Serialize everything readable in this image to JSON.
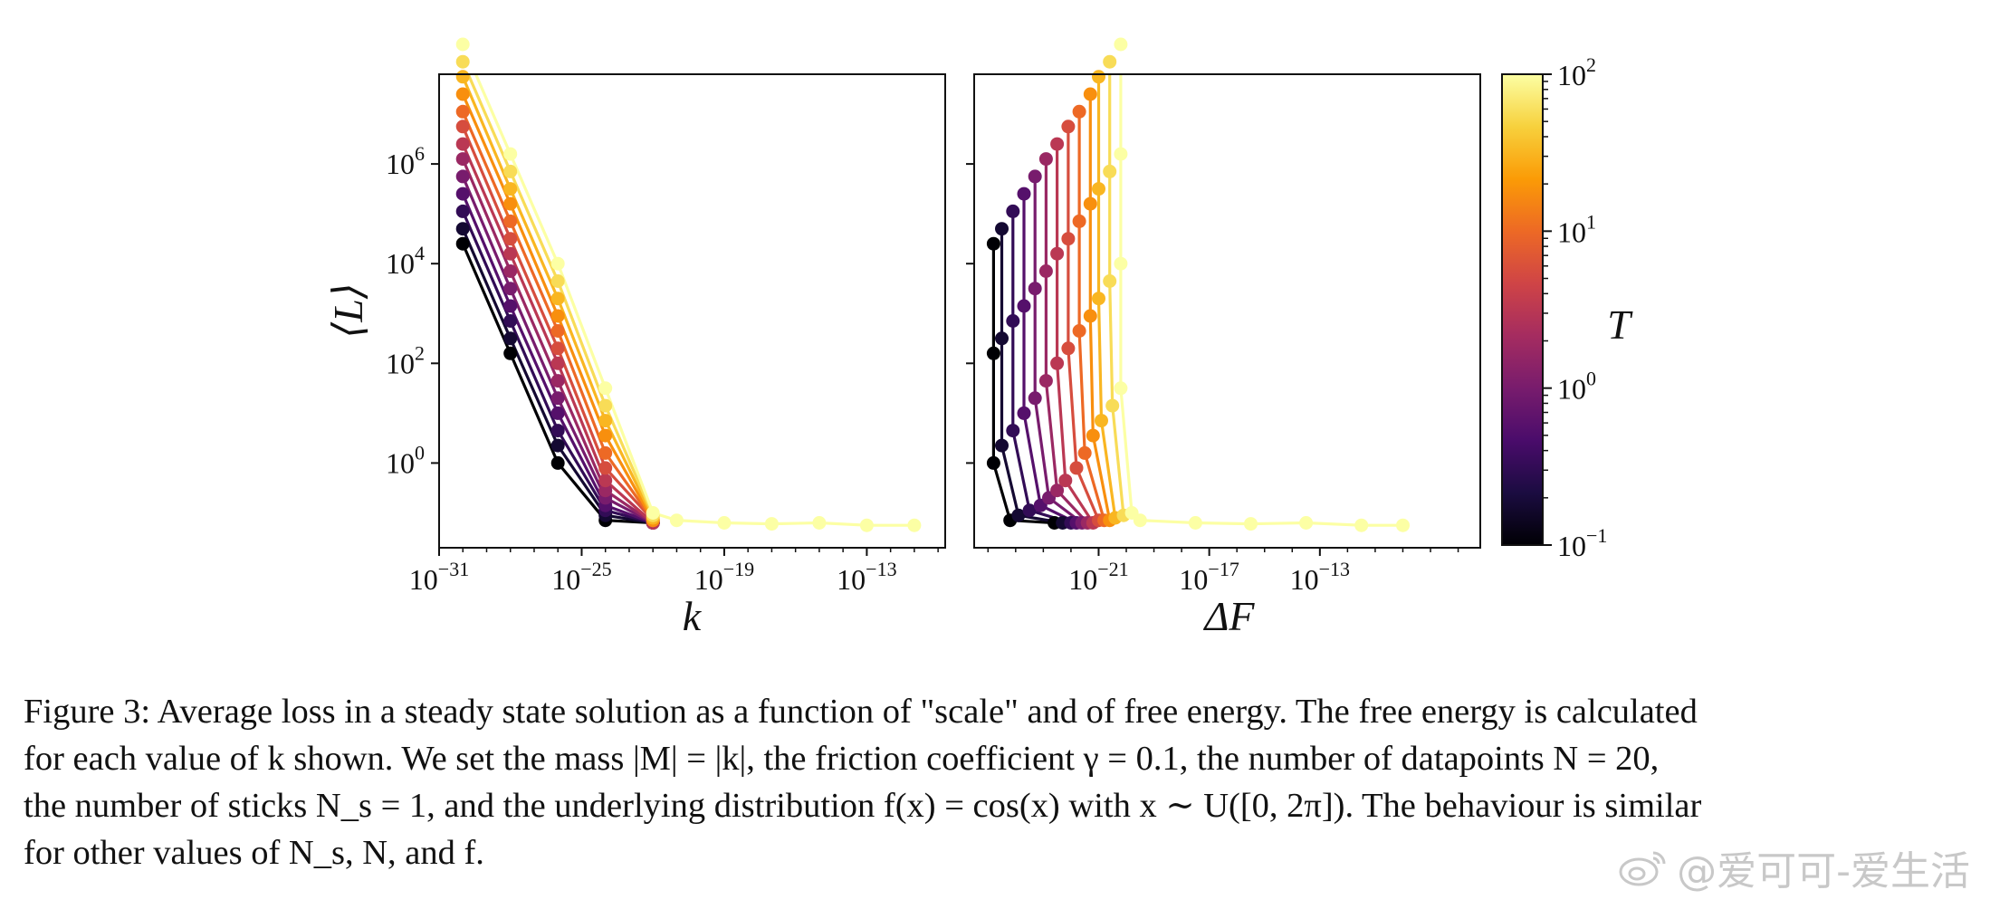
{
  "chart_data": [
    {
      "type": "line",
      "panel": "left",
      "xlabel": "k",
      "ylabel": "⟨L⟩",
      "xscale": "log",
      "yscale": "log",
      "xlim_exp": [
        -31,
        -9.7
      ],
      "ylim_exp": [
        -1.7,
        7.8
      ],
      "xticks": [
        {
          "base": "10",
          "exp": "−31",
          "value_exp": -31
        },
        {
          "base": "10",
          "exp": "−25",
          "value_exp": -25
        },
        {
          "base": "10",
          "exp": "−19",
          "value_exp": -19
        },
        {
          "base": "10",
          "exp": "−13",
          "value_exp": -13
        }
      ],
      "yticks": [
        {
          "base": "10",
          "exp": "0",
          "value_exp": 0
        },
        {
          "base": "10",
          "exp": "2",
          "value_exp": 2
        },
        {
          "base": "10",
          "exp": "4",
          "value_exp": 4
        },
        {
          "base": "10",
          "exp": "6",
          "value_exp": 6
        }
      ],
      "tail_log10_k": [
        -21,
        -19,
        -17,
        -15,
        -13,
        -11
      ],
      "tail_log10_L": [
        -1.15,
        -1.2,
        -1.22,
        -1.2,
        -1.25,
        -1.25
      ],
      "series": [
        {
          "T": 0.1,
          "x_log10": [
            -30,
            -28,
            -26,
            -24,
            -22
          ],
          "y_log10": [
            4.4,
            2.2,
            0.0,
            -1.15,
            -1.2
          ]
        },
        {
          "T": 0.178,
          "x_log10": [
            -30,
            -28,
            -26,
            -24,
            -22
          ],
          "y_log10": [
            4.7,
            2.5,
            0.35,
            -1.05,
            -1.2
          ]
        },
        {
          "T": 0.316,
          "x_log10": [
            -30,
            -28,
            -26,
            -24,
            -22
          ],
          "y_log10": [
            5.05,
            2.85,
            0.65,
            -0.95,
            -1.2
          ]
        },
        {
          "T": 0.562,
          "x_log10": [
            -30,
            -28,
            -26,
            -24,
            -22
          ],
          "y_log10": [
            5.4,
            3.15,
            1.0,
            -0.85,
            -1.2
          ]
        },
        {
          "T": 1.0,
          "x_log10": [
            -30,
            -28,
            -26,
            -24,
            -22
          ],
          "y_log10": [
            5.75,
            3.5,
            1.3,
            -0.7,
            -1.2
          ]
        },
        {
          "T": 1.78,
          "x_log10": [
            -30,
            -28,
            -26,
            -24,
            -22
          ],
          "y_log10": [
            6.1,
            3.85,
            1.65,
            -0.55,
            -1.2
          ]
        },
        {
          "T": 3.16,
          "x_log10": [
            -30,
            -28,
            -26,
            -24,
            -22
          ],
          "y_log10": [
            6.4,
            4.2,
            2.0,
            -0.35,
            -1.2
          ]
        },
        {
          "T": 5.62,
          "x_log10": [
            -30,
            -28,
            -26,
            -24,
            -22
          ],
          "y_log10": [
            6.75,
            4.5,
            2.3,
            -0.1,
            -1.15
          ]
        },
        {
          "T": 10.0,
          "x_log10": [
            -30,
            -28,
            -26,
            -24,
            -22
          ],
          "y_log10": [
            7.05,
            4.85,
            2.65,
            0.2,
            -1.15
          ]
        },
        {
          "T": 17.8,
          "x_log10": [
            -30,
            -28,
            -26,
            -24,
            -22
          ],
          "y_log10": [
            7.4,
            5.2,
            2.95,
            0.55,
            -1.15
          ]
        },
        {
          "T": 31.6,
          "x_log10": [
            -30,
            -28,
            -26,
            -24,
            -22
          ],
          "y_log10": [
            7.75,
            5.5,
            3.3,
            0.85,
            -1.1
          ]
        },
        {
          "T": 56.2,
          "x_log10": [
            -30,
            -28,
            -26,
            -24,
            -22
          ],
          "y_log10": [
            8.05,
            5.85,
            3.65,
            1.15,
            -1.05
          ]
        },
        {
          "T": 100.0,
          "x_log10": [
            -30,
            -28,
            -26,
            -24,
            -22
          ],
          "y_log10": [
            8.4,
            6.2,
            4.0,
            1.5,
            -1.0
          ]
        }
      ]
    },
    {
      "type": "line",
      "panel": "right",
      "xlabel": "ΔF",
      "xscale": "log",
      "yscale": "log",
      "xlim_exp": [
        -25.5,
        -7.2
      ],
      "ylim_exp": [
        -1.7,
        7.8
      ],
      "xticks": [
        {
          "base": "10",
          "exp": "−21",
          "value_exp": -21
        },
        {
          "base": "10",
          "exp": "−17",
          "value_exp": -17
        },
        {
          "base": "10",
          "exp": "−13",
          "value_exp": -13
        }
      ],
      "tail_log10_dF": [
        -19.5,
        -17.5,
        -15.5,
        -13.5,
        -11.5,
        -10
      ],
      "tail_log10_L": [
        -1.15,
        -1.2,
        -1.22,
        -1.2,
        -1.25,
        -1.25
      ],
      "series": [
        {
          "T": 0.1,
          "x_log10": [
            -24.8,
            -24.8,
            -24.8,
            -24.2,
            -22.6
          ],
          "y_log10": [
            4.4,
            2.2,
            0.0,
            -1.15,
            -1.2
          ]
        },
        {
          "T": 0.178,
          "x_log10": [
            -24.5,
            -24.5,
            -24.5,
            -23.9,
            -22.3
          ],
          "y_log10": [
            4.7,
            2.5,
            0.35,
            -1.05,
            -1.2
          ]
        },
        {
          "T": 0.316,
          "x_log10": [
            -24.1,
            -24.1,
            -24.1,
            -23.5,
            -22.0
          ],
          "y_log10": [
            5.05,
            2.85,
            0.65,
            -0.95,
            -1.2
          ]
        },
        {
          "T": 0.562,
          "x_log10": [
            -23.7,
            -23.7,
            -23.7,
            -23.1,
            -21.8
          ],
          "y_log10": [
            5.4,
            3.15,
            1.0,
            -0.85,
            -1.2
          ]
        },
        {
          "T": 1.0,
          "x_log10": [
            -23.3,
            -23.3,
            -23.3,
            -22.8,
            -21.6
          ],
          "y_log10": [
            5.75,
            3.5,
            1.3,
            -0.7,
            -1.2
          ]
        },
        {
          "T": 1.78,
          "x_log10": [
            -22.9,
            -22.9,
            -22.9,
            -22.5,
            -21.4
          ],
          "y_log10": [
            6.1,
            3.85,
            1.65,
            -0.55,
            -1.2
          ]
        },
        {
          "T": 3.16,
          "x_log10": [
            -22.5,
            -22.5,
            -22.5,
            -22.2,
            -21.2
          ],
          "y_log10": [
            6.4,
            4.2,
            2.0,
            -0.35,
            -1.2
          ]
        },
        {
          "T": 5.62,
          "x_log10": [
            -22.1,
            -22.1,
            -22.1,
            -21.8,
            -21.0
          ],
          "y_log10": [
            6.75,
            4.5,
            2.3,
            -0.1,
            -1.15
          ]
        },
        {
          "T": 10.0,
          "x_log10": [
            -21.7,
            -21.7,
            -21.7,
            -21.5,
            -20.8
          ],
          "y_log10": [
            7.05,
            4.85,
            2.65,
            0.2,
            -1.15
          ]
        },
        {
          "T": 17.8,
          "x_log10": [
            -21.3,
            -21.3,
            -21.3,
            -21.2,
            -20.6
          ],
          "y_log10": [
            7.4,
            5.2,
            2.95,
            0.55,
            -1.15
          ]
        },
        {
          "T": 31.6,
          "x_log10": [
            -21.0,
            -21.0,
            -21.0,
            -20.9,
            -20.4
          ],
          "y_log10": [
            7.75,
            5.5,
            3.3,
            0.85,
            -1.1
          ]
        },
        {
          "T": 56.2,
          "x_log10": [
            -20.6,
            -20.6,
            -20.6,
            -20.5,
            -20.1
          ],
          "y_log10": [
            8.05,
            5.85,
            3.65,
            1.15,
            -1.05
          ]
        },
        {
          "T": 100.0,
          "x_log10": [
            -20.2,
            -20.2,
            -20.2,
            -20.2,
            -19.8
          ],
          "y_log10": [
            8.4,
            6.2,
            4.0,
            1.5,
            -1.0
          ]
        }
      ]
    }
  ],
  "colorbar": {
    "label": "T",
    "scale": "log",
    "range": [
      0.1,
      100
    ],
    "ticks": [
      {
        "base": "10",
        "exp": "2"
      },
      {
        "base": "10",
        "exp": "1"
      },
      {
        "base": "10",
        "exp": "0"
      },
      {
        "base": "10",
        "exp": "−1"
      }
    ],
    "colormap": "inferno",
    "stops": [
      "#000004",
      "#1b0c41",
      "#4a0c6b",
      "#781c6d",
      "#a52c60",
      "#cf4446",
      "#ed6925",
      "#fb9b06",
      "#f7d13d",
      "#fcffa4"
    ]
  },
  "caption": {
    "lines": [
      "Figure 3: Average loss in a steady state solution as a function of \"scale\" and of free energy. The free energy is calculated",
      "for each value of k shown. We set the mass |M| = |k|, the friction coefficient γ = 0.1, the number of datapoints N = 20,",
      "the number of sticks N_s = 1, and the underlying distribution f(x) = cos(x) with x ∼ U([0, 2π]). The behaviour is similar",
      "for other values of N_s, N, and f."
    ]
  },
  "watermark": {
    "text": "@爱可可-爱生活"
  }
}
